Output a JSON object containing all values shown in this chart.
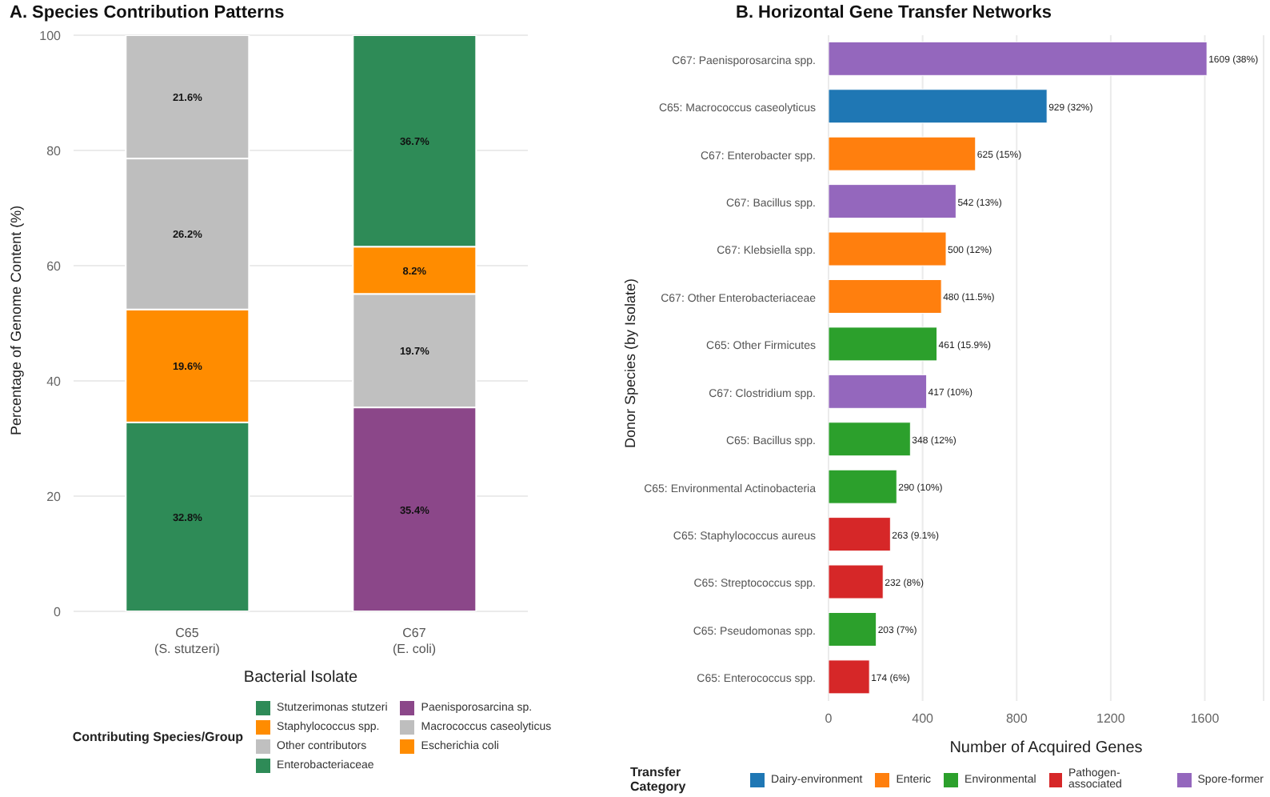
{
  "chart_data": [
    {
      "type": "bar",
      "title": "A. Species Contribution Patterns",
      "xlabel": "Bacterial Isolate",
      "ylabel": "Percentage of Genome Content (%)",
      "legend_title": "Contributing Species/Group",
      "categories": [
        "C65\n(S. stutzeri)",
        "C67\n(E. coli)"
      ],
      "stacked": true,
      "ylim": [
        0,
        100
      ],
      "yticks": [
        0,
        20,
        40,
        60,
        80,
        100
      ],
      "grid": "y",
      "legend": "bottom",
      "series": [
        {
          "name": "Stutzerimonas stutzeri",
          "color": "#2e8b57",
          "values": [
            32.8,
            null
          ],
          "value_labels": [
            "32.8%",
            null
          ]
        },
        {
          "name": "Paenisporosarcina sp.",
          "color": "#8b4789",
          "values": [
            null,
            35.4
          ],
          "value_labels": [
            null,
            "35.4%"
          ]
        },
        {
          "name": "Staphylococcus spp.",
          "color": "#ff8c00",
          "values": [
            19.6,
            null
          ],
          "value_labels": [
            "19.6%",
            null
          ]
        },
        {
          "name": "Macrococcus caseolyticus",
          "color": "#bebebe",
          "values": [
            26.2,
            null
          ],
          "value_labels": [
            "26.2%",
            null
          ]
        },
        {
          "name": "Other contributors",
          "color": "#c0c0c0",
          "values": [
            21.6,
            19.7
          ],
          "value_labels": [
            "21.6%",
            "19.7%"
          ]
        },
        {
          "name": "Escherichia coli",
          "color": "#ff8c00",
          "values": [
            null,
            8.2
          ],
          "value_labels": [
            null,
            "8.2%"
          ]
        },
        {
          "name": "Enterobacteriaceae",
          "color": "#2e8b57",
          "values": [
            null,
            36.7
          ],
          "value_labels": [
            null,
            "36.7%"
          ]
        }
      ]
    },
    {
      "type": "bar",
      "orientation": "horizontal",
      "title": "B. Horizontal Gene Transfer Networks",
      "xlabel": "Number of Acquired Genes",
      "ylabel": "Donor Species (by Isolate)",
      "legend_title": "Transfer Category",
      "categories": [
        "C67: Paenisporosarcina spp.",
        "C65: Macrococcus caseolyticus",
        "C67: Enterobacter spp.",
        "C67: Bacillus spp.",
        "C67: Klebsiella spp.",
        "C67: Other Enterobacteriaceae",
        "C65: Other Firmicutes",
        "C67: Clostridium spp.",
        "C65: Bacillus spp.",
        "C65: Environmental Actinobacteria",
        "C65: Staphylococcus aureus",
        "C65: Streptococcus spp.",
        "C65: Pseudomonas spp.",
        "C65: Enterococcus spp."
      ],
      "stacked": true,
      "xlim": [
        0,
        1850
      ],
      "xticks": [
        0,
        400,
        800,
        1200,
        1600
      ],
      "grid": "x",
      "legend": "bottom",
      "series": [
        {
          "name": "Dairy-environment",
          "color": "#1f77b4",
          "values": [
            null,
            929,
            null,
            null,
            null,
            null,
            null,
            null,
            null,
            null,
            null,
            null,
            null,
            null
          ],
          "value_labels": [
            null,
            "929 (32%)",
            null,
            null,
            null,
            null,
            null,
            null,
            null,
            null,
            null,
            null,
            null,
            null
          ]
        },
        {
          "name": "Enteric",
          "color": "#ff7f0e",
          "values": [
            null,
            null,
            625,
            null,
            500,
            480,
            null,
            null,
            null,
            null,
            null,
            null,
            null,
            null
          ],
          "value_labels": [
            null,
            null,
            "625 (15%)",
            null,
            "500 (12%)",
            "480 (11.5%)",
            null,
            null,
            null,
            null,
            null,
            null,
            null,
            null
          ]
        },
        {
          "name": "Environmental",
          "color": "#2ca02c",
          "values": [
            null,
            null,
            null,
            null,
            null,
            null,
            461,
            null,
            348,
            290,
            null,
            null,
            203,
            null
          ],
          "value_labels": [
            null,
            null,
            null,
            null,
            null,
            null,
            "461 (15.9%)",
            null,
            "348 (12%)",
            "290 (10%)",
            null,
            null,
            "203 (7%)",
            null
          ]
        },
        {
          "name": "Pathogen-associated",
          "color": "#d62728",
          "values": [
            null,
            null,
            null,
            null,
            null,
            null,
            null,
            null,
            null,
            null,
            263,
            232,
            null,
            174
          ],
          "value_labels": [
            null,
            null,
            null,
            null,
            null,
            null,
            null,
            null,
            null,
            null,
            "263 (9.1%)",
            "232 (8%)",
            null,
            "174 (6%)"
          ]
        },
        {
          "name": "Spore-former",
          "color": "#9467bd",
          "values": [
            1609,
            null,
            null,
            542,
            null,
            null,
            null,
            417,
            null,
            null,
            null,
            null,
            null,
            null
          ],
          "value_labels": [
            "1609 (38%)",
            null,
            null,
            "542 (13%)",
            null,
            null,
            null,
            "417 (10%)",
            null,
            null,
            null,
            null,
            null,
            null
          ]
        }
      ]
    }
  ]
}
